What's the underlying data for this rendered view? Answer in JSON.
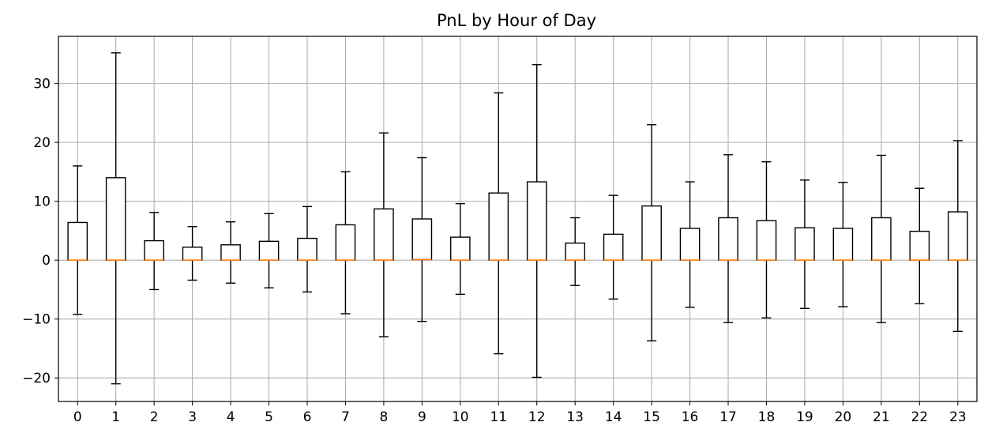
{
  "chart_data": {
    "type": "boxplot",
    "title": "PnL by Hour of Day",
    "xlabel": "",
    "ylabel": "",
    "categories": [
      "0",
      "1",
      "2",
      "3",
      "4",
      "5",
      "6",
      "7",
      "8",
      "9",
      "10",
      "11",
      "12",
      "13",
      "14",
      "15",
      "16",
      "17",
      "18",
      "19",
      "20",
      "21",
      "22",
      "23"
    ],
    "ylim": [
      -24,
      38
    ],
    "yticks": [
      -20,
      -10,
      0,
      10,
      20,
      30
    ],
    "ytick_labels": [
      "−20",
      "−10",
      "0",
      "10",
      "20",
      "30"
    ],
    "grid": true,
    "boxes": [
      {
        "whisker_low": -9.2,
        "q1": 0,
        "median": 0,
        "q3": 6.4,
        "whisker_high": 16.0
      },
      {
        "whisker_low": -21.0,
        "q1": 0,
        "median": 0,
        "q3": 14.0,
        "whisker_high": 35.2
      },
      {
        "whisker_low": -5.0,
        "q1": 0,
        "median": 0,
        "q3": 3.3,
        "whisker_high": 8.1
      },
      {
        "whisker_low": -3.4,
        "q1": 0,
        "median": 0,
        "q3": 2.2,
        "whisker_high": 5.7
      },
      {
        "whisker_low": -3.9,
        "q1": 0,
        "median": 0,
        "q3": 2.6,
        "whisker_high": 6.5
      },
      {
        "whisker_low": -4.7,
        "q1": 0,
        "median": 0,
        "q3": 3.2,
        "whisker_high": 7.9
      },
      {
        "whisker_low": -5.4,
        "q1": 0,
        "median": 0,
        "q3": 3.7,
        "whisker_high": 9.1
      },
      {
        "whisker_low": -9.1,
        "q1": 0,
        "median": 0,
        "q3": 6.0,
        "whisker_high": 15.0
      },
      {
        "whisker_low": -13.0,
        "q1": 0,
        "median": 0,
        "q3": 8.7,
        "whisker_high": 21.6
      },
      {
        "whisker_low": -10.4,
        "q1": 0.1,
        "median": 0.1,
        "q3": 7.0,
        "whisker_high": 17.4
      },
      {
        "whisker_low": -5.8,
        "q1": 0,
        "median": 0,
        "q3": 3.9,
        "whisker_high": 9.6
      },
      {
        "whisker_low": -15.9,
        "q1": 0,
        "median": 0,
        "q3": 11.4,
        "whisker_high": 28.4
      },
      {
        "whisker_low": -19.9,
        "q1": 0,
        "median": 0,
        "q3": 13.3,
        "whisker_high": 33.2
      },
      {
        "whisker_low": -4.3,
        "q1": 0,
        "median": 0,
        "q3": 2.9,
        "whisker_high": 7.2
      },
      {
        "whisker_low": -6.6,
        "q1": 0,
        "median": 0,
        "q3": 4.4,
        "whisker_high": 11.0
      },
      {
        "whisker_low": -13.7,
        "q1": 0,
        "median": 0,
        "q3": 9.2,
        "whisker_high": 23.0
      },
      {
        "whisker_low": -8.0,
        "q1": 0,
        "median": 0,
        "q3": 5.4,
        "whisker_high": 13.3
      },
      {
        "whisker_low": -10.6,
        "q1": 0,
        "median": 0,
        "q3": 7.2,
        "whisker_high": 17.9
      },
      {
        "whisker_low": -9.8,
        "q1": 0,
        "median": 0,
        "q3": 6.7,
        "whisker_high": 16.7
      },
      {
        "whisker_low": -8.2,
        "q1": 0,
        "median": 0,
        "q3": 5.5,
        "whisker_high": 13.6
      },
      {
        "whisker_low": -7.9,
        "q1": 0,
        "median": 0,
        "q3": 5.4,
        "whisker_high": 13.2
      },
      {
        "whisker_low": -10.6,
        "q1": 0,
        "median": 0,
        "q3": 7.2,
        "whisker_high": 17.8
      },
      {
        "whisker_low": -7.4,
        "q1": 0,
        "median": 0,
        "q3": 4.9,
        "whisker_high": 12.2
      },
      {
        "whisker_low": -12.1,
        "q1": 0,
        "median": 0,
        "q3": 8.2,
        "whisker_high": 20.3
      }
    ],
    "colors": {
      "box": "#000000",
      "median": "#ff7f0e",
      "grid": "#b0b0b0"
    }
  }
}
